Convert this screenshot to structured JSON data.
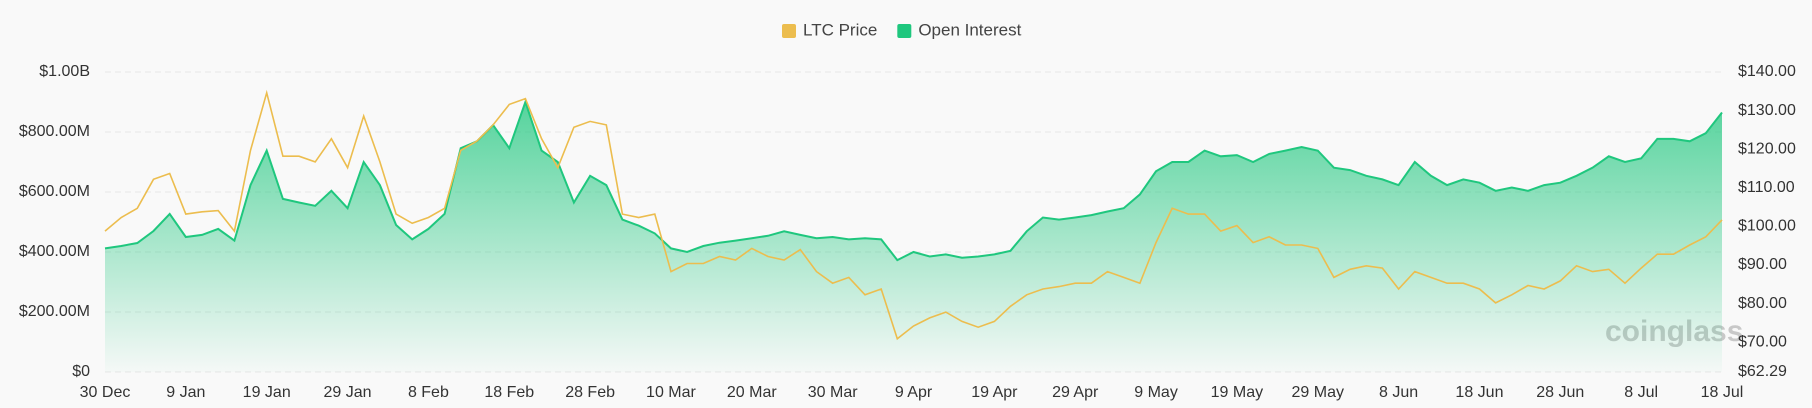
{
  "chart_data": {
    "type": "line",
    "watermark": "coinglass",
    "categories": [
      "30 Dec",
      null,
      null,
      null,
      null,
      "9 Jan",
      null,
      null,
      null,
      null,
      "19 Jan",
      null,
      null,
      null,
      null,
      "29 Jan",
      null,
      null,
      null,
      null,
      "8 Feb",
      null,
      null,
      null,
      null,
      "18 Feb",
      null,
      null,
      null,
      null,
      "28 Feb",
      null,
      null,
      null,
      null,
      "10 Mar",
      null,
      null,
      null,
      null,
      "20 Mar",
      null,
      null,
      null,
      null,
      "30 Mar",
      null,
      null,
      null,
      null,
      "9 Apr",
      null,
      null,
      null,
      null,
      "19 Apr",
      null,
      null,
      null,
      null,
      "29 Apr",
      null,
      null,
      null,
      null,
      "9 May",
      null,
      null,
      null,
      null,
      "19 May",
      null,
      null,
      null,
      null,
      "29 May",
      null,
      null,
      null,
      null,
      "8 Jun",
      null,
      null,
      null,
      null,
      "18 Jun",
      null,
      null,
      null,
      null,
      "28 Jun",
      null,
      null,
      null,
      null,
      "8 Jul",
      null,
      null,
      null,
      null,
      "18 Jul"
    ],
    "series": [
      {
        "name": "LTC Price",
        "color": "#ecbd4e",
        "axis": "y2",
        "values": [
          98.8,
          102.3,
          104.7,
          112.2,
          113.7,
          103.2,
          103.8,
          104.1,
          98.8,
          119.7,
          134.6,
          118.2,
          118.2,
          116.7,
          122.7,
          115.2,
          128.6,
          116.7,
          103.2,
          100.8,
          102.3,
          104.7,
          119.7,
          122.1,
          126.3,
          131.6,
          133.1,
          122.7,
          115.2,
          125.7,
          127.2,
          126.3,
          103.2,
          102.3,
          103.2,
          88.3,
          90.4,
          90.4,
          92.2,
          91.3,
          94.3,
          92.2,
          91.3,
          94.0,
          88.3,
          85.3,
          86.8,
          82.3,
          83.8,
          70.9,
          74.2,
          76.3,
          77.8,
          75.4,
          73.9,
          75.4,
          79.3,
          82.3,
          83.8,
          84.4,
          85.3,
          85.3,
          88.3,
          86.8,
          85.3,
          95.8,
          104.7,
          103.2,
          103.2,
          98.8,
          100.2,
          95.8,
          97.3,
          95.2,
          95.2,
          94.3,
          86.8,
          88.9,
          89.8,
          89.2,
          83.8,
          88.3,
          86.8,
          85.3,
          85.3,
          83.8,
          80.2,
          82.3,
          84.7,
          83.8,
          85.9,
          89.8,
          88.3,
          88.9,
          85.3,
          89.2,
          92.8,
          92.8,
          95.2,
          97.3,
          101.7
        ]
      },
      {
        "name": "Open Interest",
        "color": "#1fc77e",
        "area": true,
        "values": [
          412000000,
          420000000,
          430000000,
          470000000,
          527000000,
          450000000,
          457000000,
          477000000,
          438000000,
          623000000,
          738000000,
          577000000,
          565000000,
          554000000,
          604000000,
          546000000,
          700000000,
          623000000,
          490000000,
          442000000,
          477000000,
          527000000,
          746000000,
          769000000,
          823000000,
          746000000,
          900000000,
          738000000,
          700000000,
          565000000,
          654000000,
          623000000,
          508000000,
          488000000,
          462000000,
          412000000,
          400000000,
          420000000,
          431000000,
          438000000,
          446000000,
          454000000,
          469000000,
          457000000,
          446000000,
          450000000,
          442000000,
          446000000,
          442000000,
          373000000,
          400000000,
          385000000,
          392000000,
          381000000,
          385000000,
          392000000,
          404000000,
          469000000,
          515000000,
          508000000,
          515000000,
          523000000,
          535000000,
          546000000,
          592000000,
          669000000,
          700000000,
          700000000,
          738000000,
          719000000,
          723000000,
          700000000,
          727000000,
          738000000,
          750000000,
          738000000,
          681000000,
          673000000,
          654000000,
          642000000,
          623000000,
          700000000,
          654000000,
          623000000,
          642000000,
          631000000,
          604000000,
          615000000,
          604000000,
          623000000,
          631000000,
          654000000,
          681000000,
          719000000,
          700000000,
          712000000,
          777000000,
          777000000,
          769000000,
          796000000,
          865000000
        ]
      }
    ],
    "ylim": [
      0,
      1000000000
    ],
    "yticks": [
      {
        "value": 0,
        "label": "$0"
      },
      {
        "value": 200000000,
        "label": "$200.00M"
      },
      {
        "value": 400000000,
        "label": "$400.00M"
      },
      {
        "value": 600000000,
        "label": "$600.00M"
      },
      {
        "value": 800000000,
        "label": "$800.00M"
      },
      {
        "value": 1000000000,
        "label": "$1.00B"
      }
    ],
    "y2lim": [
      62.29,
      140
    ],
    "y2ticks": [
      {
        "value": 62.29,
        "label": "$62.29"
      },
      {
        "value": 70,
        "label": "$70.00"
      },
      {
        "value": 80,
        "label": "$80.00"
      },
      {
        "value": 90,
        "label": "$90.00"
      },
      {
        "value": 100,
        "label": "$100.00"
      },
      {
        "value": 110,
        "label": "$110.00"
      },
      {
        "value": 120,
        "label": "$120.00"
      },
      {
        "value": 130,
        "label": "$130.00"
      },
      {
        "value": 140,
        "label": "$140.00"
      }
    ],
    "grid": true,
    "legend": "top"
  }
}
